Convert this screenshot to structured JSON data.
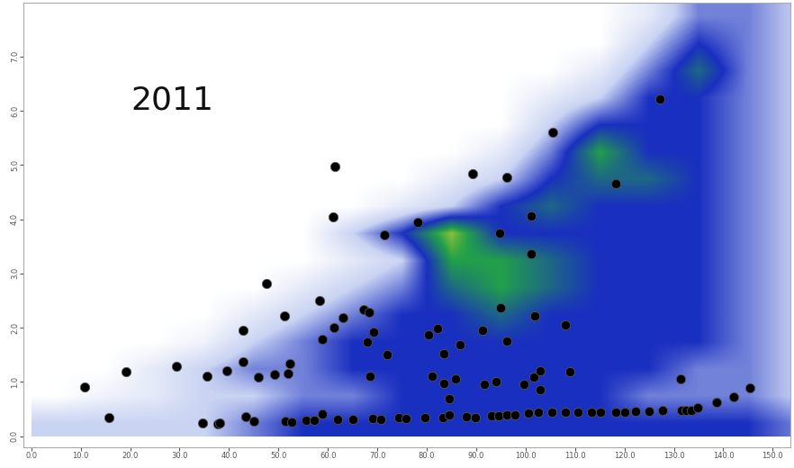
{
  "chart_data": {
    "type": "scatter",
    "annotation": "2011",
    "color": "#000000",
    "marker": "o",
    "xlim": [
      -1.5,
      153.5
    ],
    "ylim": [
      -0.2,
      8.0
    ],
    "xticks": [
      {
        "value": 0,
        "label": "0.0"
      },
      {
        "value": 10,
        "label": "10.0"
      },
      {
        "value": 20,
        "label": "20.0"
      },
      {
        "value": 30,
        "label": "30.0"
      },
      {
        "value": 40,
        "label": "40.0"
      },
      {
        "value": 50,
        "label": "50.0"
      },
      {
        "value": 60,
        "label": "60.0"
      },
      {
        "value": 70,
        "label": "70.0"
      },
      {
        "value": 80,
        "label": "80.0"
      },
      {
        "value": 90,
        "label": "90.0"
      },
      {
        "value": 100,
        "label": "100.0"
      },
      {
        "value": 110,
        "label": "110.0"
      },
      {
        "value": 120,
        "label": "120.0"
      },
      {
        "value": 130,
        "label": "130.0"
      },
      {
        "value": 140,
        "label": "140.0"
      },
      {
        "value": 150,
        "label": "150.0"
      }
    ],
    "yticks": [
      {
        "value": 0,
        "label": "0.0"
      },
      {
        "value": 1,
        "label": "1.0"
      },
      {
        "value": 2,
        "label": "2.0"
      },
      {
        "value": 3,
        "label": "3.0"
      },
      {
        "value": 4,
        "label": "4.0"
      },
      {
        "value": 5,
        "label": "5.0"
      },
      {
        "value": 6,
        "label": "6.0"
      },
      {
        "value": 7,
        "label": "7.0"
      }
    ],
    "points": [
      [
        10.8,
        0.9
      ],
      [
        15.8,
        0.34
      ],
      [
        19.1,
        1.19
      ],
      [
        29.4,
        1.29
      ],
      [
        35.6,
        1.11
      ],
      [
        34.7,
        0.24
      ],
      [
        37.7,
        0.23
      ],
      [
        38.2,
        0.24
      ],
      [
        39.6,
        1.21
      ],
      [
        42.8,
        1.37
      ],
      [
        42.8,
        1.95
      ],
      [
        43.4,
        0.35
      ],
      [
        45.1,
        0.27
      ],
      [
        46.0,
        1.08
      ],
      [
        47.6,
        2.82
      ],
      [
        49.2,
        1.13
      ],
      [
        51.3,
        2.21
      ],
      [
        51.9,
        1.15
      ],
      [
        51.5,
        0.27
      ],
      [
        52.7,
        0.26
      ],
      [
        52.4,
        1.34
      ],
      [
        55.6,
        0.29
      ],
      [
        57.2,
        0.29
      ],
      [
        58.4,
        2.5
      ],
      [
        58.8,
        1.79
      ],
      [
        58.9,
        0.4
      ],
      [
        61.4,
        4.97
      ],
      [
        61.1,
        4.05
      ],
      [
        61.2,
        2.0
      ],
      [
        61.9,
        0.31
      ],
      [
        63.0,
        2.18
      ],
      [
        65.1,
        0.31
      ],
      [
        67.3,
        2.34
      ],
      [
        68.3,
        2.29
      ],
      [
        68.0,
        1.74
      ],
      [
        68.5,
        1.11
      ],
      [
        69.0,
        0.32
      ],
      [
        69.2,
        1.92
      ],
      [
        70.8,
        0.31
      ],
      [
        71.5,
        3.71
      ],
      [
        71.9,
        1.5
      ],
      [
        74.3,
        0.34
      ],
      [
        75.8,
        0.32
      ],
      [
        78.2,
        3.94
      ],
      [
        79.6,
        0.34
      ],
      [
        80.4,
        1.87
      ],
      [
        81.1,
        1.11
      ],
      [
        82.1,
        1.98
      ],
      [
        83.2,
        0.34
      ],
      [
        83.4,
        1.52
      ],
      [
        83.5,
        0.98
      ],
      [
        84.6,
        0.39
      ],
      [
        84.6,
        0.69
      ],
      [
        85.8,
        1.06
      ],
      [
        86.7,
        1.68
      ],
      [
        88.1,
        0.35
      ],
      [
        89.2,
        4.84
      ],
      [
        89.9,
        0.34
      ],
      [
        91.3,
        1.95
      ],
      [
        91.7,
        0.95
      ],
      [
        93.1,
        0.37
      ],
      [
        94.0,
        1.0
      ],
      [
        94.5,
        0.37
      ],
      [
        95.0,
        2.37
      ],
      [
        94.7,
        3.74
      ],
      [
        96.3,
        4.77
      ],
      [
        96.3,
        1.76
      ],
      [
        96.3,
        0.39
      ],
      [
        97.9,
        0.39
      ],
      [
        99.6,
        0.95
      ],
      [
        100.5,
        0.42
      ],
      [
        101.2,
        3.37
      ],
      [
        101.2,
        4.06
      ],
      [
        101.6,
        1.08
      ],
      [
        101.8,
        2.21
      ],
      [
        102.5,
        0.44
      ],
      [
        103.0,
        0.85
      ],
      [
        103.0,
        1.21
      ],
      [
        105.3,
        0.44
      ],
      [
        105.5,
        5.6
      ],
      [
        108.1,
        0.44
      ],
      [
        108.0,
        2.05
      ],
      [
        109.0,
        1.18
      ],
      [
        110.6,
        0.44
      ],
      [
        113.3,
        0.44
      ],
      [
        115.2,
        0.44
      ],
      [
        118.2,
        4.66
      ],
      [
        118.2,
        0.44
      ],
      [
        120.0,
        0.44
      ],
      [
        122.3,
        0.45
      ],
      [
        124.9,
        0.45
      ],
      [
        127.8,
        0.47
      ],
      [
        127.1,
        6.21
      ],
      [
        131.3,
        1.05
      ],
      [
        131.5,
        0.47
      ],
      [
        132.4,
        0.48
      ],
      [
        133.5,
        0.48
      ],
      [
        134.9,
        0.53
      ],
      [
        138.6,
        0.63
      ],
      [
        142.1,
        0.73
      ],
      [
        145.3,
        0.89
      ]
    ],
    "heatmap": {
      "x_range": [
        0,
        160
      ],
      "y_range": [
        0,
        8
      ],
      "value_range": [
        0,
        5
      ],
      "cells": [
        [
          1,
          1,
          1,
          1,
          1.5,
          2,
          2,
          2,
          2,
          2,
          2,
          2,
          2,
          2,
          2,
          1.5
        ],
        [
          0,
          0.3,
          0.5,
          1,
          1,
          1.5,
          1.5,
          2,
          2,
          2,
          2,
          2,
          1.5,
          1.5,
          1.5,
          1
        ],
        [
          0,
          0,
          0.5,
          1,
          1.5,
          1.5,
          2,
          2,
          2,
          2,
          2,
          2,
          2,
          1.5,
          1.5,
          1
        ],
        [
          0,
          0,
          0,
          0.3,
          1,
          1.5,
          2,
          2,
          2,
          2,
          2,
          2,
          2,
          2,
          1.5,
          1
        ],
        [
          0,
          0,
          0,
          0,
          0.5,
          1,
          1.5,
          2,
          2,
          2.5,
          2,
          2,
          2,
          2,
          1.5,
          1
        ],
        [
          0,
          0,
          0,
          0,
          0,
          0.5,
          1,
          1.5,
          2.5,
          3,
          2.5,
          2,
          2,
          2,
          1.5,
          1
        ],
        [
          0,
          0,
          0,
          0,
          0,
          0,
          0.5,
          1,
          3,
          3,
          2.5,
          2,
          2,
          2,
          1.5,
          1
        ],
        [
          0,
          0,
          0,
          0,
          0,
          0,
          1,
          2,
          3.5,
          2,
          2,
          2,
          2,
          2,
          1.5,
          1
        ],
        [
          0,
          0,
          0,
          0,
          0,
          0,
          0,
          0.5,
          1,
          2,
          2.5,
          2,
          2,
          2,
          1.5,
          1
        ],
        [
          0,
          0,
          0,
          0,
          0,
          0,
          0,
          0,
          0.5,
          1,
          2,
          2.5,
          2.5,
          2,
          1.5,
          1
        ],
        [
          0,
          0,
          0,
          0,
          0,
          0,
          0,
          0,
          0,
          0.5,
          1.5,
          3,
          2,
          2,
          1.5,
          1
        ],
        [
          0,
          0,
          0,
          0,
          0,
          0,
          0,
          0,
          0,
          0,
          1,
          2,
          2,
          2,
          1.5,
          1
        ],
        [
          0,
          0,
          0,
          0,
          0,
          0,
          0,
          0,
          0,
          0,
          0.5,
          1,
          2,
          2,
          1.5,
          1
        ],
        [
          0,
          0,
          0,
          0,
          0,
          0,
          0,
          0,
          0,
          0,
          0,
          0.5,
          1.5,
          2.5,
          1.5,
          1
        ],
        [
          0,
          0,
          0,
          0,
          0,
          0,
          0,
          0,
          0,
          0,
          0,
          0,
          1,
          2,
          1.5,
          1
        ],
        [
          0,
          0,
          0,
          0,
          0,
          0,
          0,
          0,
          0,
          0,
          0,
          0,
          0.5,
          1.5,
          1.5,
          1
        ]
      ]
    }
  }
}
